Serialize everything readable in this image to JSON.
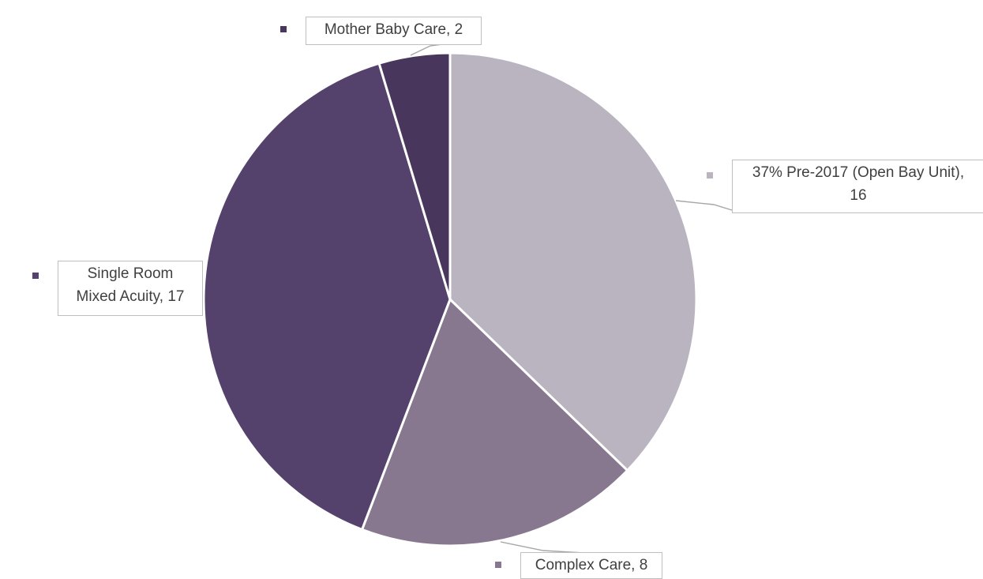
{
  "chart_data": {
    "type": "pie",
    "categories": [
      "37% Pre-2017 (Open Bay Unit)",
      "Complex Care",
      "Single Room Mixed Acuity",
      "Mother Baby Care"
    ],
    "values": [
      16,
      8,
      17,
      2
    ],
    "colors": [
      "#b9b4c0",
      "#877890",
      "#54416c",
      "#48365c"
    ],
    "start_angle_deg": 0,
    "direction": "clockwise",
    "data_labels": [
      {
        "lines": [
          "37% Pre-2017 (Open Bay Unit),",
          "16"
        ],
        "key_color": "#b9b4c0"
      },
      {
        "lines": [
          "Complex Care, 8"
        ],
        "key_color": "#877890"
      },
      {
        "lines": [
          "Single Room",
          "Mixed Acuity, 17"
        ],
        "key_color": "#54416c"
      },
      {
        "lines": [
          "Mother Baby Care, 2"
        ],
        "key_color": "#48365c"
      }
    ],
    "leader_line_color": "#a6a6a6",
    "label_border_color": "#bfbfbf",
    "label_text_color": "#404040"
  }
}
